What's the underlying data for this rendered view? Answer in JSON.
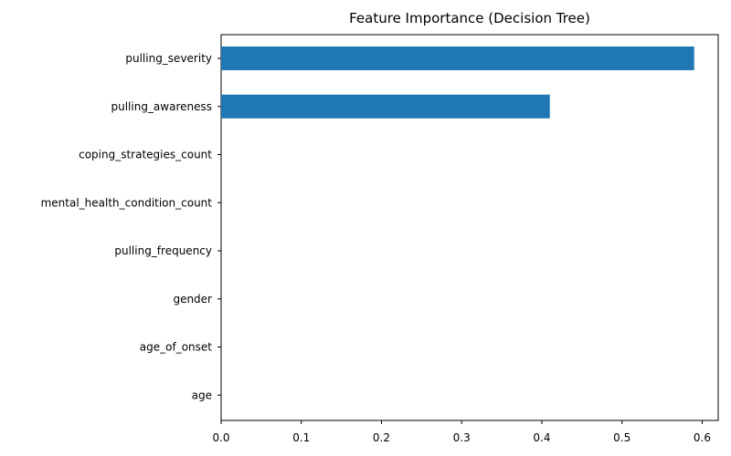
{
  "chart_data": {
    "type": "bar",
    "orientation": "horizontal",
    "title": "Feature Importance (Decision Tree)",
    "xlabel": "",
    "ylabel": "",
    "categories": [
      "pulling_severity",
      "pulling_awareness",
      "coping_strategies_count",
      "mental_health_condition_count",
      "pulling_frequency",
      "gender",
      "age_of_onset",
      "age"
    ],
    "values": [
      0.59,
      0.41,
      0.0,
      0.0,
      0.0,
      0.0,
      0.0,
      0.0
    ],
    "xlim": [
      0,
      0.62
    ],
    "xticks": [
      0.0,
      0.1,
      0.2,
      0.3,
      0.4,
      0.5,
      0.6
    ],
    "xtick_labels": [
      "0.0",
      "0.1",
      "0.2",
      "0.3",
      "0.4",
      "0.5",
      "0.6"
    ],
    "bar_color": "#1f77b4",
    "grid": false,
    "legend": "none"
  }
}
